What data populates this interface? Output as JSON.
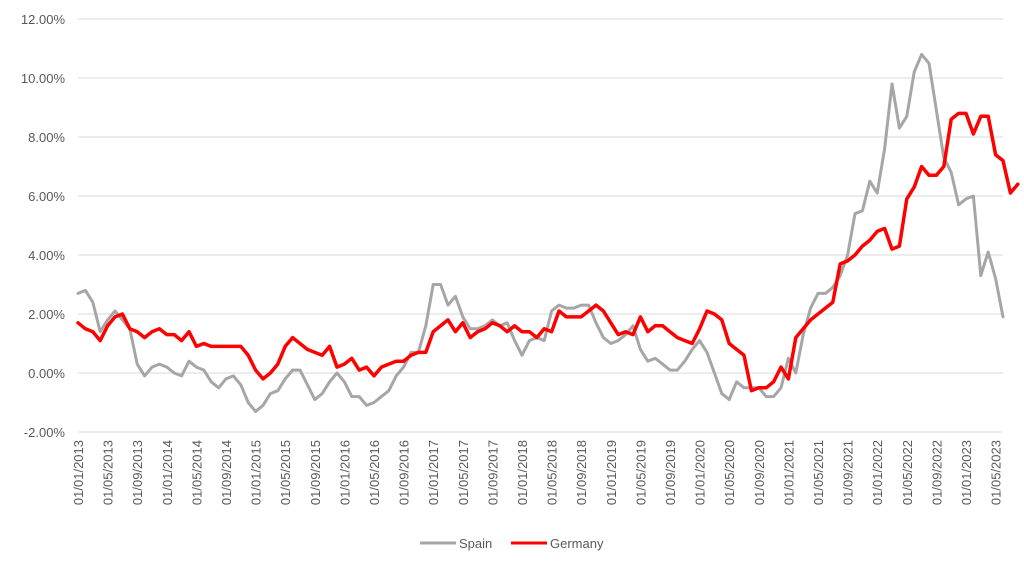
{
  "chart_data": {
    "type": "line",
    "title": "",
    "xlabel": "",
    "ylabel": "",
    "ylim": [
      -0.02,
      0.12
    ],
    "y_ticks": [
      "12.00%",
      "10.00%",
      "8.00%",
      "6.00%",
      "4.00%",
      "2.00%",
      "0.00%",
      "-2.00%"
    ],
    "y_tick_values": [
      0.12,
      0.1,
      0.08,
      0.06,
      0.04,
      0.02,
      0.0,
      -0.02
    ],
    "x_start": "01/01/2013",
    "x_ticks": [
      "01/01/2013",
      "01/05/2013",
      "01/09/2013",
      "01/01/2014",
      "01/05/2014",
      "01/09/2014",
      "01/01/2015",
      "01/05/2015",
      "01/09/2015",
      "01/01/2016",
      "01/05/2016",
      "01/09/2016",
      "01/01/2017",
      "01/05/2017",
      "01/09/2017",
      "01/01/2018",
      "01/05/2018",
      "01/09/2018",
      "01/01/2019",
      "01/05/2019",
      "01/09/2019",
      "01/01/2020",
      "01/05/2020",
      "01/09/2020",
      "01/01/2021",
      "01/05/2021",
      "01/09/2021",
      "01/01/2022",
      "01/05/2022",
      "01/09/2022",
      "01/01/2023",
      "01/05/2023"
    ],
    "grid": "horizontal",
    "legend_position": "bottom",
    "series": [
      {
        "name": "Spain",
        "color": "#a6a6a6",
        "values": [
          0.027,
          0.028,
          0.024,
          0.014,
          0.018,
          0.021,
          0.018,
          0.015,
          0.003,
          -0.001,
          0.002,
          0.003,
          0.002,
          0.0,
          -0.001,
          0.004,
          0.002,
          0.001,
          -0.003,
          -0.005,
          -0.002,
          -0.001,
          -0.004,
          -0.01,
          -0.013,
          -0.011,
          -0.007,
          -0.006,
          -0.002,
          0.001,
          0.001,
          -0.004,
          -0.009,
          -0.007,
          -0.003,
          0.0,
          -0.003,
          -0.008,
          -0.008,
          -0.011,
          -0.01,
          -0.008,
          -0.006,
          -0.001,
          0.002,
          0.007,
          0.007,
          0.016,
          0.03,
          0.03,
          0.023,
          0.026,
          0.019,
          0.015,
          0.015,
          0.016,
          0.018,
          0.016,
          0.017,
          0.011,
          0.006,
          0.011,
          0.012,
          0.011,
          0.021,
          0.023,
          0.022,
          0.022,
          0.023,
          0.023,
          0.017,
          0.012,
          0.01,
          0.011,
          0.013,
          0.016,
          0.008,
          0.004,
          0.005,
          0.003,
          0.001,
          0.001,
          0.004,
          0.008,
          0.011,
          0.007,
          0.0,
          -0.007,
          -0.009,
          -0.003,
          -0.005,
          -0.005,
          -0.005,
          -0.008,
          -0.008,
          -0.005,
          0.005,
          0.0,
          0.013,
          0.022,
          0.027,
          0.027,
          0.029,
          0.033,
          0.04,
          0.054,
          0.055,
          0.065,
          0.061,
          0.076,
          0.098,
          0.083,
          0.087,
          0.102,
          0.108,
          0.105,
          0.089,
          0.073,
          0.068,
          0.057,
          0.059,
          0.06,
          0.033,
          0.041,
          0.032,
          0.019
        ]
      },
      {
        "name": "Germany",
        "color": "#ff0000",
        "values": [
          0.017,
          0.015,
          0.014,
          0.011,
          0.016,
          0.019,
          0.02,
          0.015,
          0.014,
          0.012,
          0.014,
          0.015,
          0.013,
          0.013,
          0.011,
          0.014,
          0.009,
          0.01,
          0.009,
          0.009,
          0.009,
          0.009,
          0.009,
          0.006,
          0.001,
          -0.002,
          0.0,
          0.003,
          0.009,
          0.012,
          0.01,
          0.008,
          0.007,
          0.006,
          0.009,
          0.002,
          0.003,
          0.005,
          0.001,
          0.002,
          -0.001,
          0.002,
          0.003,
          0.004,
          0.004,
          0.006,
          0.007,
          0.007,
          0.014,
          0.016,
          0.018,
          0.014,
          0.017,
          0.012,
          0.014,
          0.015,
          0.017,
          0.016,
          0.014,
          0.016,
          0.014,
          0.014,
          0.012,
          0.015,
          0.014,
          0.021,
          0.019,
          0.019,
          0.019,
          0.021,
          0.023,
          0.021,
          0.017,
          0.013,
          0.014,
          0.013,
          0.019,
          0.014,
          0.016,
          0.016,
          0.014,
          0.012,
          0.011,
          0.01,
          0.015,
          0.021,
          0.02,
          0.018,
          0.01,
          0.008,
          0.006,
          -0.006,
          -0.005,
          -0.005,
          -0.003,
          0.002,
          -0.002,
          0.012,
          0.015,
          0.018,
          0.02,
          0.022,
          0.024,
          0.037,
          0.038,
          0.04,
          0.043,
          0.045,
          0.048,
          0.049,
          0.042,
          0.043,
          0.059,
          0.063,
          0.07,
          0.067,
          0.067,
          0.07,
          0.086,
          0.088,
          0.088,
          0.081,
          0.087,
          0.087,
          0.074,
          0.072,
          0.061,
          0.064
        ]
      }
    ]
  }
}
